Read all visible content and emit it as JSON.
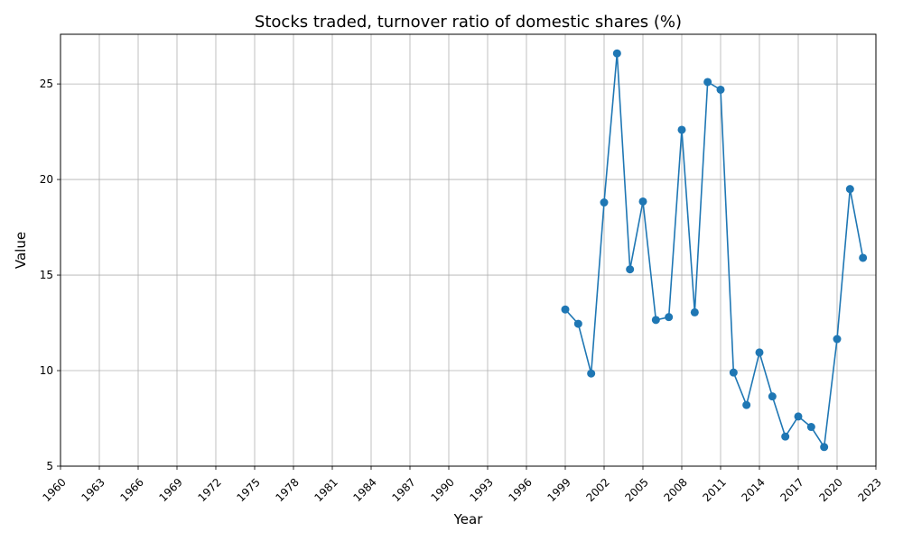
{
  "chart_data": {
    "type": "line",
    "title": "Stocks traded, turnover ratio of domestic shares (%)",
    "xlabel": "Year",
    "ylabel": "Value",
    "xlim": [
      1960,
      2023
    ],
    "ylim": [
      5,
      27.6
    ],
    "x_ticks": [
      1960,
      1963,
      1966,
      1969,
      1972,
      1975,
      1978,
      1981,
      1984,
      1987,
      1990,
      1993,
      1996,
      1999,
      2002,
      2005,
      2008,
      2011,
      2014,
      2017,
      2020,
      2023
    ],
    "y_ticks": [
      5,
      10,
      15,
      20,
      25
    ],
    "grid": true,
    "series": [
      {
        "color": "#1f77b4",
        "x": [
          1999,
          2000,
          2001,
          2002,
          2003,
          2004,
          2005,
          2006,
          2007,
          2008,
          2009,
          2010,
          2011,
          2012,
          2013,
          2014,
          2015,
          2016,
          2017,
          2018,
          2019,
          2020,
          2021,
          2022
        ],
        "values": [
          13.2,
          12.45,
          9.85,
          18.8,
          26.6,
          15.3,
          18.85,
          12.65,
          12.8,
          22.6,
          13.05,
          25.1,
          24.7,
          9.9,
          8.2,
          10.95,
          8.65,
          6.55,
          7.6,
          7.05,
          6.0,
          11.65,
          19.5,
          15.9
        ]
      }
    ]
  }
}
